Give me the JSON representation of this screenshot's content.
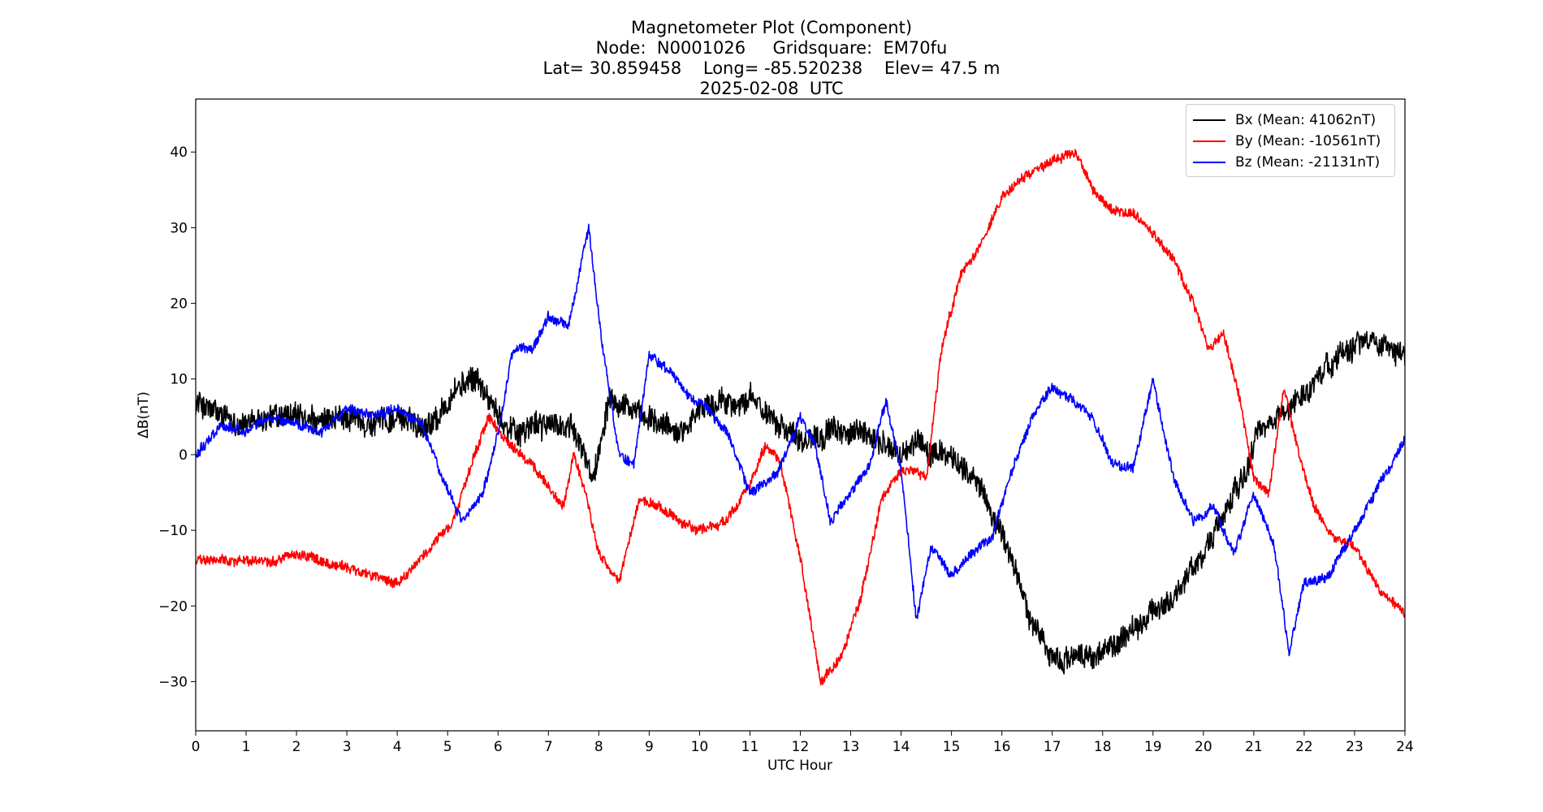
{
  "chart_data": {
    "type": "line",
    "title_lines": [
      "Magnetometer Plot (Component)",
      "Node:  N0001026     Gridsquare:  EM70fu",
      "Lat= 30.859458    Long= -85.520238    Elev= 47.5 m",
      "2025-02-08  UTC"
    ],
    "xlabel": "UTC Hour",
    "ylabel": "ΔB(nT)",
    "xlim": [
      0,
      24
    ],
    "ylim": [
      -36.5,
      47
    ],
    "xticks": [
      0,
      1,
      2,
      3,
      4,
      5,
      6,
      7,
      8,
      9,
      10,
      11,
      12,
      13,
      14,
      15,
      16,
      17,
      18,
      19,
      20,
      21,
      22,
      23,
      24
    ],
    "yticks": [
      -30,
      -20,
      -10,
      0,
      10,
      20,
      30,
      40
    ],
    "legend_position": "top-right",
    "series": [
      {
        "name": "Bx",
        "label": "Bx (Mean: 41062nT)",
        "color": "#000000",
        "noise": 3.0,
        "points": [
          [
            0,
            7
          ],
          [
            0.5,
            5
          ],
          [
            1,
            4
          ],
          [
            1.5,
            5
          ],
          [
            2,
            5
          ],
          [
            2.5,
            4
          ],
          [
            3,
            5
          ],
          [
            3.5,
            4
          ],
          [
            4,
            5
          ],
          [
            4.5,
            4
          ],
          [
            4.8,
            5
          ],
          [
            5.2,
            9
          ],
          [
            5.6,
            10
          ],
          [
            6,
            5
          ],
          [
            6.4,
            3
          ],
          [
            6.8,
            4
          ],
          [
            7.2,
            4
          ],
          [
            7.5,
            3
          ],
          [
            7.9,
            -3
          ],
          [
            8.2,
            8
          ],
          [
            8.5,
            7
          ],
          [
            8.8,
            5
          ],
          [
            9.2,
            4
          ],
          [
            9.6,
            3
          ],
          [
            10,
            6
          ],
          [
            10.5,
            7
          ],
          [
            11,
            7
          ],
          [
            11.5,
            5
          ],
          [
            12,
            2
          ],
          [
            12.5,
            3
          ],
          [
            13,
            3
          ],
          [
            13.5,
            2
          ],
          [
            14,
            0
          ],
          [
            14.3,
            2
          ],
          [
            14.6,
            0
          ],
          [
            15,
            0
          ],
          [
            15.3,
            -2
          ],
          [
            15.7,
            -6
          ],
          [
            16.2,
            -14
          ],
          [
            16.6,
            -22
          ],
          [
            17,
            -27
          ],
          [
            17.5,
            -27
          ],
          [
            18,
            -26
          ],
          [
            18.5,
            -24
          ],
          [
            19,
            -21
          ],
          [
            19.5,
            -18
          ],
          [
            20,
            -13
          ],
          [
            20.4,
            -8
          ],
          [
            20.8,
            -3
          ],
          [
            21.1,
            3
          ],
          [
            21.5,
            5
          ],
          [
            22,
            8
          ],
          [
            22.5,
            12
          ],
          [
            23,
            15
          ],
          [
            23.5,
            15
          ],
          [
            24,
            13
          ]
        ]
      },
      {
        "name": "By",
        "label": "By (Mean: -10561nT)",
        "color": "#ff0000",
        "noise": 1.2,
        "points": [
          [
            0,
            -14
          ],
          [
            0.5,
            -14
          ],
          [
            1,
            -14
          ],
          [
            1.5,
            -14
          ],
          [
            2,
            -13
          ],
          [
            2.5,
            -14
          ],
          [
            3,
            -15
          ],
          [
            3.5,
            -16
          ],
          [
            4,
            -17
          ],
          [
            4.3,
            -15
          ],
          [
            4.7,
            -12
          ],
          [
            5.1,
            -9
          ],
          [
            5.4,
            -3
          ],
          [
            5.8,
            5
          ],
          [
            6,
            3
          ],
          [
            6.3,
            1
          ],
          [
            6.6,
            -1
          ],
          [
            7,
            -4
          ],
          [
            7.3,
            -7
          ],
          [
            7.5,
            0
          ],
          [
            7.7,
            -4
          ],
          [
            8,
            -13
          ],
          [
            8.4,
            -17
          ],
          [
            8.8,
            -6
          ],
          [
            9.2,
            -7
          ],
          [
            9.6,
            -9
          ],
          [
            10,
            -10
          ],
          [
            10.5,
            -9
          ],
          [
            11,
            -4
          ],
          [
            11.3,
            1
          ],
          [
            11.6,
            -1
          ],
          [
            12,
            -14
          ],
          [
            12.4,
            -30
          ],
          [
            12.8,
            -27
          ],
          [
            13.2,
            -19
          ],
          [
            13.6,
            -6
          ],
          [
            14,
            -2
          ],
          [
            14.5,
            -3
          ],
          [
            14.8,
            14
          ],
          [
            15.2,
            24
          ],
          [
            15.6,
            28
          ],
          [
            16,
            34
          ],
          [
            16.5,
            37
          ],
          [
            17,
            39
          ],
          [
            17.5,
            40
          ],
          [
            17.8,
            35
          ],
          [
            18.2,
            32
          ],
          [
            18.6,
            32
          ],
          [
            19,
            29
          ],
          [
            19.4,
            26
          ],
          [
            19.8,
            20
          ],
          [
            20.1,
            14
          ],
          [
            20.4,
            16
          ],
          [
            20.7,
            8
          ],
          [
            21,
            -3
          ],
          [
            21.3,
            -5
          ],
          [
            21.6,
            9
          ],
          [
            21.9,
            0
          ],
          [
            22.2,
            -7
          ],
          [
            22.6,
            -11
          ],
          [
            23,
            -12
          ],
          [
            23.5,
            -18
          ],
          [
            24,
            -21
          ]
        ]
      },
      {
        "name": "Bz",
        "label": "Bz (Mean: -21131nT)",
        "color": "#0000ff",
        "noise": 1.2,
        "points": [
          [
            0,
            0
          ],
          [
            0.5,
            4
          ],
          [
            1,
            3
          ],
          [
            1.5,
            5
          ],
          [
            2,
            4
          ],
          [
            2.5,
            3
          ],
          [
            3,
            6
          ],
          [
            3.5,
            5
          ],
          [
            4,
            6
          ],
          [
            4.5,
            4
          ],
          [
            4.9,
            -3
          ],
          [
            5.3,
            -9
          ],
          [
            5.7,
            -5
          ],
          [
            6,
            3
          ],
          [
            6.3,
            14
          ],
          [
            6.7,
            14
          ],
          [
            7,
            18
          ],
          [
            7.4,
            17
          ],
          [
            7.8,
            30
          ],
          [
            8.1,
            13
          ],
          [
            8.4,
            0
          ],
          [
            8.7,
            -1
          ],
          [
            9,
            13
          ],
          [
            9.4,
            11
          ],
          [
            9.8,
            8
          ],
          [
            10.2,
            6
          ],
          [
            10.6,
            2
          ],
          [
            11,
            -5
          ],
          [
            11.5,
            -3
          ],
          [
            12,
            5
          ],
          [
            12.3,
            1
          ],
          [
            12.6,
            -9
          ],
          [
            13,
            -5
          ],
          [
            13.4,
            -1
          ],
          [
            13.7,
            7
          ],
          [
            14,
            -2
          ],
          [
            14.3,
            -22
          ],
          [
            14.6,
            -12
          ],
          [
            15,
            -16
          ],
          [
            15.4,
            -13
          ],
          [
            15.8,
            -11
          ],
          [
            16.2,
            -2
          ],
          [
            16.6,
            5
          ],
          [
            17,
            9
          ],
          [
            17.4,
            7
          ],
          [
            17.8,
            5
          ],
          [
            18.2,
            -1
          ],
          [
            18.6,
            -2
          ],
          [
            19,
            10
          ],
          [
            19.4,
            -3
          ],
          [
            19.8,
            -9
          ],
          [
            20.2,
            -7
          ],
          [
            20.6,
            -13
          ],
          [
            21,
            -5
          ],
          [
            21.4,
            -12
          ],
          [
            21.7,
            -26
          ],
          [
            22,
            -17
          ],
          [
            22.5,
            -16
          ],
          [
            23,
            -10
          ],
          [
            23.5,
            -4
          ],
          [
            24,
            2
          ]
        ]
      }
    ]
  }
}
